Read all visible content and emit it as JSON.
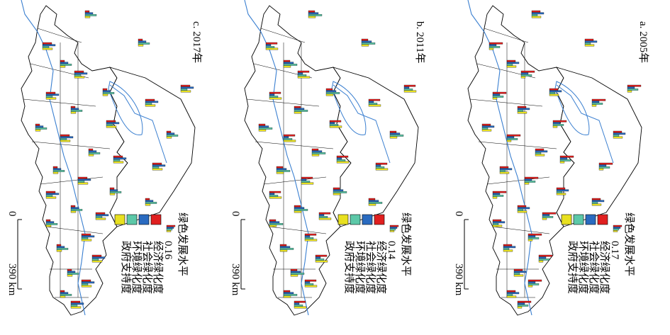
{
  "panels": [
    {
      "title": "c. 2017年",
      "legend": {
        "title": "绿色发展水平",
        "value": 0.16,
        "items": [
          "经济绿化度",
          "社会绿化度",
          "环境绿化度",
          "政府支持度"
        ]
      },
      "scale": {
        "zero": "0",
        "distance": "390 km"
      }
    },
    {
      "title": "b. 2011年",
      "legend": {
        "title": "绿色发展水平",
        "value": 0.14,
        "items": [
          "经济绿化度",
          "社会绿化度",
          "环境绿化度",
          "政府支持度"
        ]
      },
      "scale": {
        "zero": "0",
        "distance": "390 km"
      }
    },
    {
      "title": "a. 2005年",
      "legend": {
        "title": "绿色发展水平",
        "value": 0.17,
        "items": [
          "经济绿化度",
          "社会绿化度",
          "环境绿化度",
          "政府支持度"
        ]
      },
      "scale": {
        "zero": "0",
        "distance": "390 km"
      }
    }
  ]
}
